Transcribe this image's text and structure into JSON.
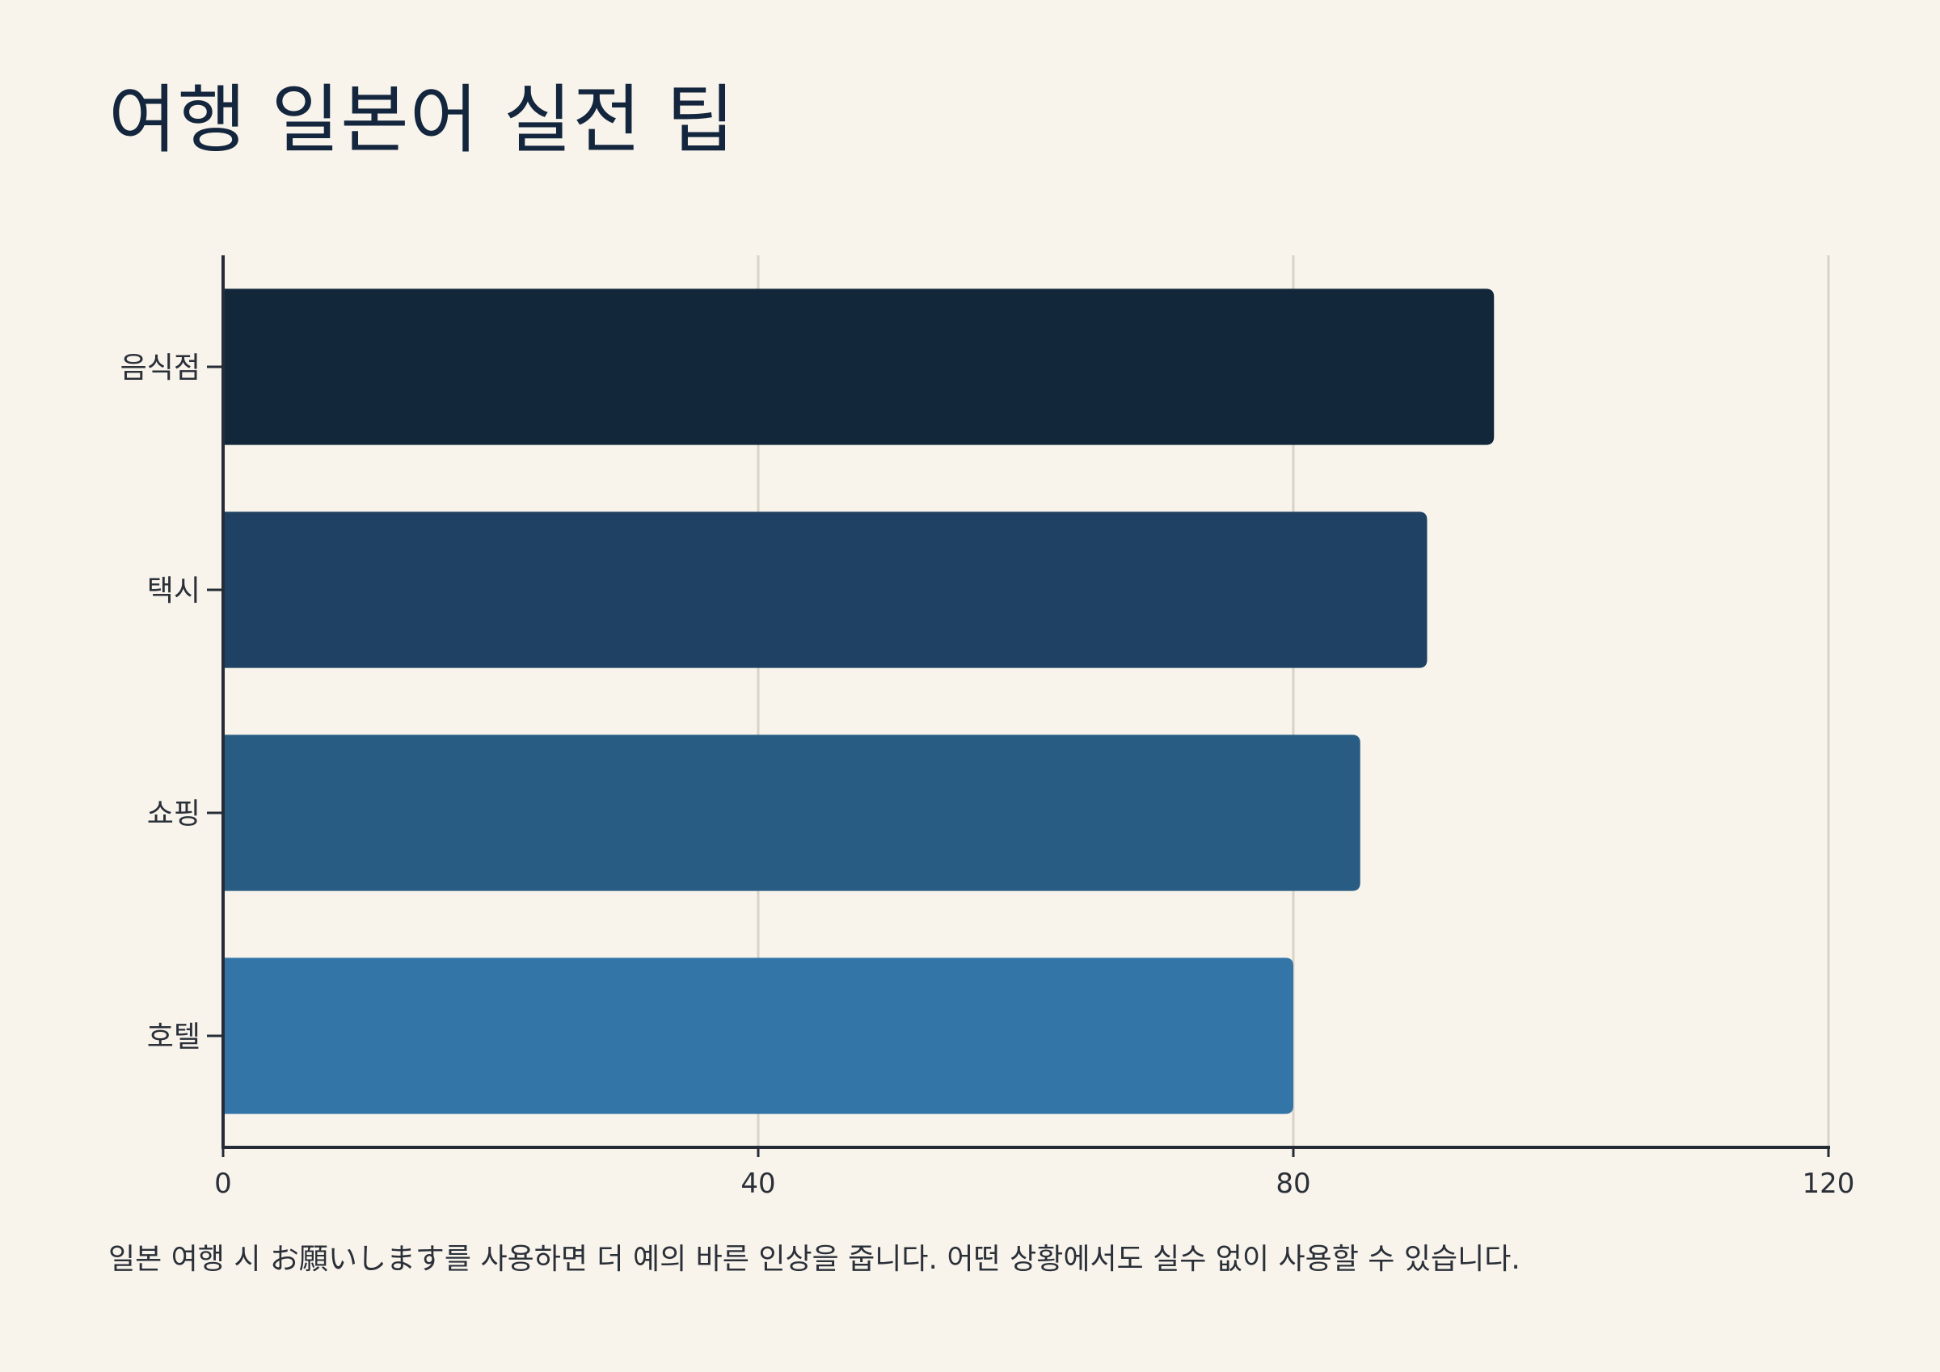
{
  "chart_data": {
    "type": "bar",
    "orientation": "horizontal",
    "title": "여행 일본어 실전 팁",
    "categories": [
      "음식점",
      "택시",
      "쇼핑",
      "호텔"
    ],
    "values": [
      95,
      90,
      85,
      80
    ],
    "bar_colors": [
      "#13273a",
      "#1f4163",
      "#285c83",
      "#3475a8"
    ],
    "xlim": [
      0,
      120
    ],
    "xticks": [
      0,
      40,
      80,
      120
    ],
    "xlabel": "",
    "ylabel": "",
    "grid": true,
    "legend": false,
    "caption": "일본 여행 시 お願いします를 사용하면 더 예의 바른 인상을 줍니다. 어떤 상황에서도 실수 없이 사용할 수 있습니다."
  },
  "colors": {
    "background": "#f8f4ec",
    "axis": "#262c36",
    "grid": "#d8d3c6",
    "title": "#14263d"
  }
}
